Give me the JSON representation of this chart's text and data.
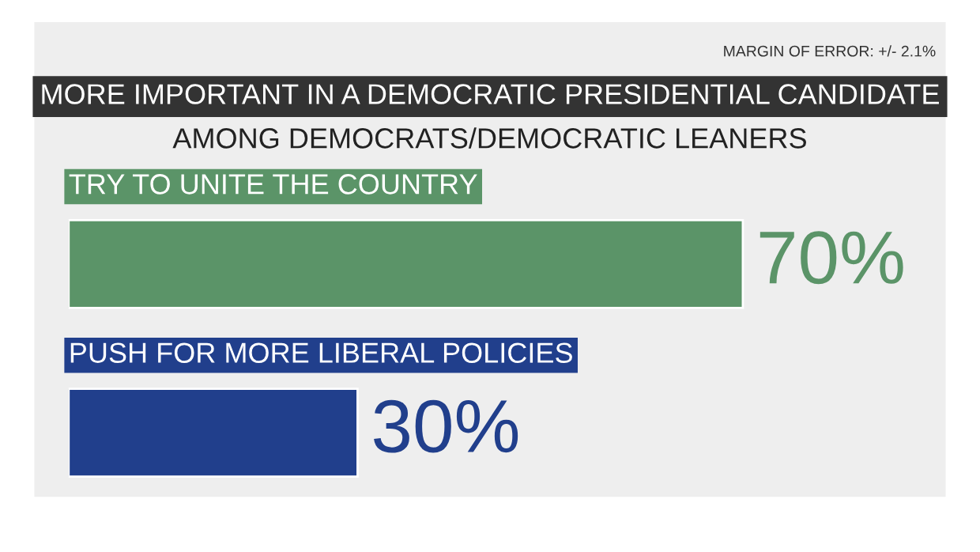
{
  "chart_data": {
    "type": "bar",
    "orientation": "horizontal",
    "title": "MORE IMPORTANT IN A DEMOCRATIC PRESIDENTIAL CANDIDATE",
    "subtitle": "AMONG DEMOCRATS/DEMOCRATIC LEANERS",
    "annotations": [
      "MARGIN OF ERROR: +/- 2.1%"
    ],
    "categories": [
      "TRY TO UNITE THE COUNTRY",
      "PUSH FOR MORE LIBERAL POLICIES"
    ],
    "values": [
      70,
      30
    ],
    "value_labels": [
      "70%",
      "30%"
    ],
    "colors": [
      "#5b9468",
      "#213f8c"
    ],
    "legend": false
  }
}
